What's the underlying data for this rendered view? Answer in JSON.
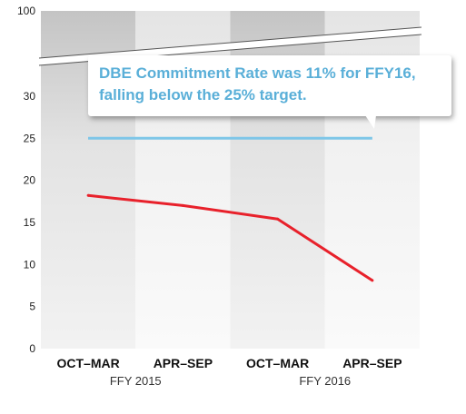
{
  "chart_data": {
    "type": "line",
    "categories": [
      "OCT–MAR",
      "APR–SEP",
      "OCT–MAR",
      "APR–SEP"
    ],
    "groups": [
      {
        "label": "FFY 2015",
        "span": [
          0,
          1
        ]
      },
      {
        "label": "FFY 2016",
        "span": [
          2,
          3
        ]
      }
    ],
    "series": [
      {
        "values": [
          18.2,
          17.0,
          15.4,
          8.1
        ],
        "color": "#e8212b"
      }
    ],
    "target": {
      "value": 25,
      "color": "#7ec6e8"
    },
    "y_ticks": [
      0,
      5,
      10,
      15,
      20,
      25,
      30,
      100
    ],
    "y_axis_break": true,
    "ylim": [
      0,
      100
    ],
    "annotation": {
      "text": "DBE Commitment Rate was 11% for FFY16, falling below the 25% target.",
      "color": "#5aafd8"
    },
    "grid": false
  }
}
